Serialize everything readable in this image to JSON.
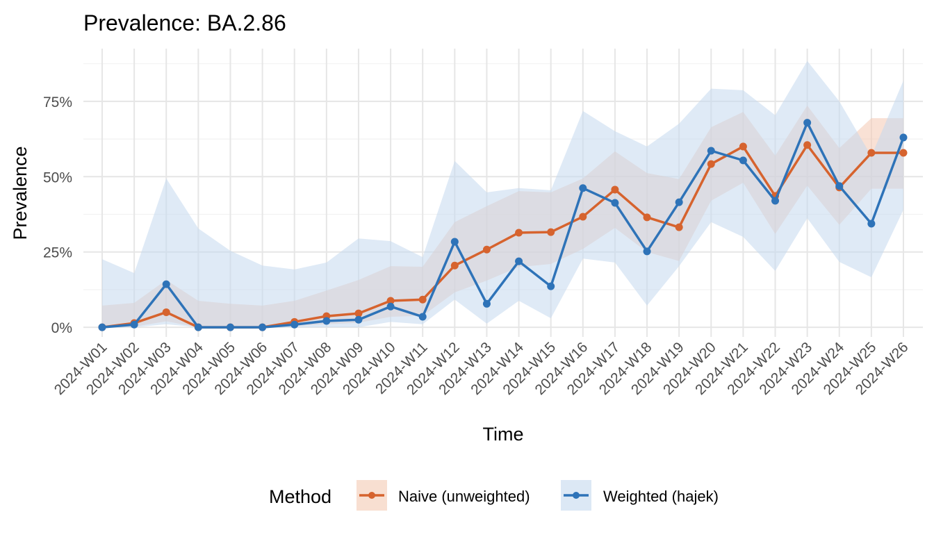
{
  "chart_data": {
    "type": "line",
    "title": "Prevalence: BA.2.86",
    "xlabel": "Time",
    "ylabel": "Prevalence",
    "ylim": [
      -3.2,
      92.5
    ],
    "yticks": [
      0,
      25,
      50,
      75
    ],
    "ytick_labels": [
      "0%",
      "25%",
      "50%",
      "75%"
    ],
    "grid": true,
    "legend": {
      "title": "Method",
      "placement": "bottom"
    },
    "categories": [
      "2024-W01",
      "2024-W02",
      "2024-W03",
      "2024-W04",
      "2024-W05",
      "2024-W06",
      "2024-W07",
      "2024-W08",
      "2024-W09",
      "2024-W10",
      "2024-W11",
      "2024-W12",
      "2024-W13",
      "2024-W14",
      "2024-W15",
      "2024-W16",
      "2024-W17",
      "2024-W18",
      "2024-W19",
      "2024-W20",
      "2024-W21",
      "2024-W22",
      "2024-W23",
      "2024-W24",
      "2024-W25",
      "2024-W26"
    ],
    "series": [
      {
        "name": "Naive (unweighted)",
        "color": "#D6632E",
        "ribbon_color": "#F4C9B3",
        "values": [
          0,
          1.4,
          5,
          0,
          0,
          0,
          1.8,
          3.7,
          4.6,
          8.8,
          9.2,
          20.5,
          25.8,
          31.4,
          31.6,
          36.7,
          45.7,
          36.5,
          33.2,
          54.2,
          60,
          43.6,
          60.5,
          46.4,
          57.9,
          57.9
        ],
        "lower": [
          0,
          0.2,
          2,
          0,
          0,
          0,
          0.4,
          1,
          1.5,
          3.5,
          3.8,
          11.6,
          15.5,
          20,
          21,
          26,
          33,
          25,
          22,
          42,
          48,
          31,
          47,
          34,
          46,
          46
        ],
        "upper": [
          7.2,
          8.1,
          15.7,
          8.8,
          7.8,
          7.2,
          8.8,
          12.2,
          15.7,
          20.3,
          20.1,
          34.9,
          40.2,
          45.2,
          44.8,
          49.4,
          58.4,
          51.2,
          49.2,
          66.4,
          71.5,
          57,
          73.6,
          59.5,
          69.4,
          69.4
        ]
      },
      {
        "name": "Weighted (hajek)",
        "color": "#2E73B8",
        "ribbon_color": "#C5D8EE",
        "values": [
          0,
          0.9,
          14.3,
          0,
          0,
          0,
          0.9,
          2.1,
          2.5,
          6.9,
          3.5,
          28.4,
          7.8,
          21.9,
          13.6,
          46.2,
          41.3,
          25.2,
          41.5,
          58.6,
          55.4,
          42,
          67.9,
          46.9,
          34.4,
          63
        ],
        "lower": [
          0,
          0,
          1,
          0,
          0,
          0,
          0,
          0,
          0,
          1.8,
          1,
          9.2,
          1.2,
          8.8,
          3,
          22.8,
          21.5,
          7.2,
          20.3,
          34.9,
          30,
          18.7,
          36.2,
          21.7,
          16.6,
          39
        ],
        "upper": [
          22.6,
          18,
          49.4,
          32.8,
          25.4,
          20.5,
          19.2,
          21.5,
          29.5,
          28.6,
          23.3,
          55.2,
          44.8,
          46.2,
          45.5,
          71.8,
          65.1,
          60,
          67.6,
          79.2,
          78.7,
          70.4,
          88.4,
          75,
          56.8,
          81.9
        ]
      }
    ]
  }
}
